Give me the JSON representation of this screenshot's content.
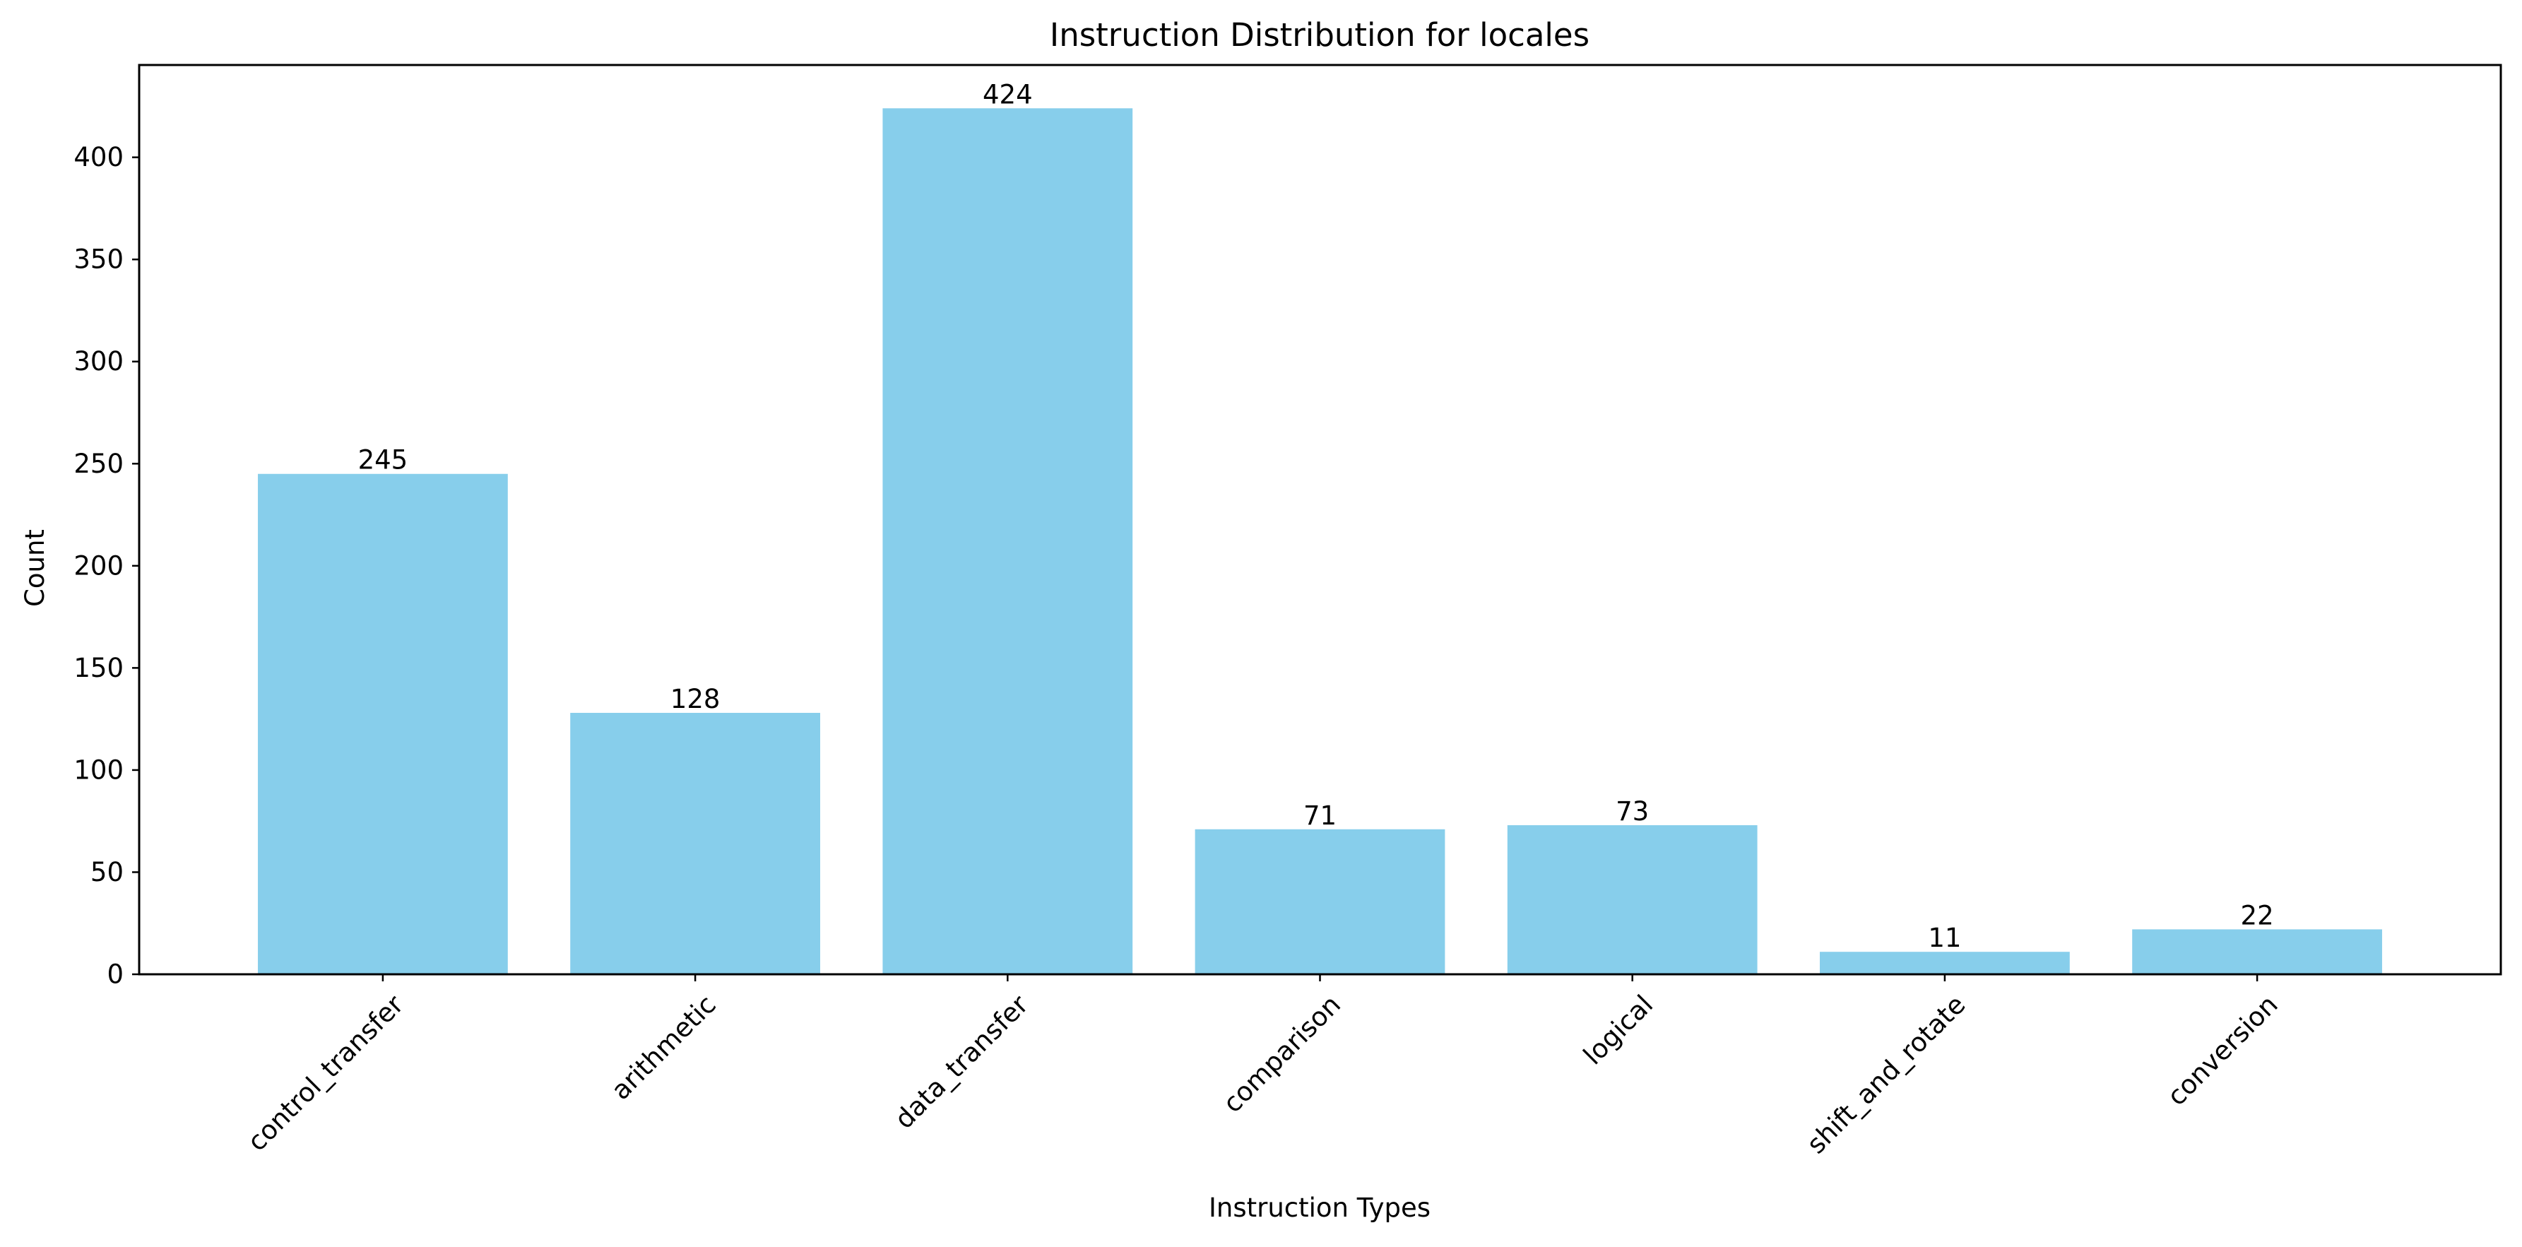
{
  "chart_data": {
    "type": "bar",
    "title": "Instruction Distribution for locales",
    "xlabel": "Instruction Types",
    "ylabel": "Count",
    "categories": [
      "control_transfer",
      "arithmetic",
      "data_transfer",
      "comparison",
      "logical",
      "shift_and_rotate",
      "conversion"
    ],
    "values": [
      245,
      128,
      424,
      71,
      73,
      11,
      22
    ],
    "ylim": [
      0,
      445.2
    ],
    "yticks": [
      0,
      50,
      100,
      150,
      200,
      250,
      300,
      350,
      400
    ],
    "bar_color": "#87ceeb",
    "grid": false,
    "legend": "none",
    "data_labels": true,
    "x_tick_rotation": 45
  }
}
